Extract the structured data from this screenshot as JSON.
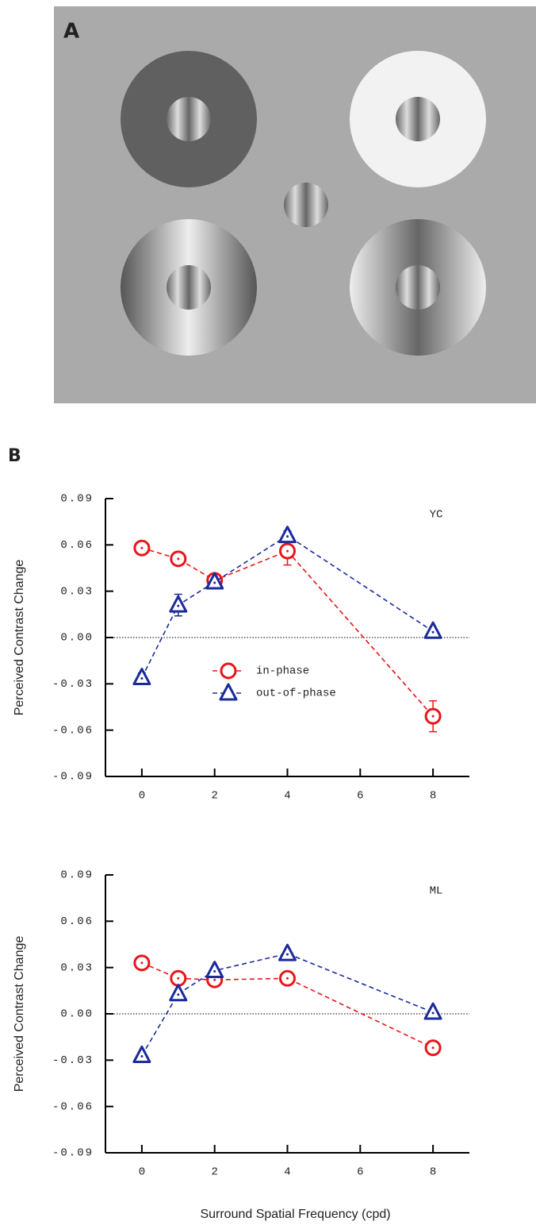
{
  "panels": {
    "a_label": "A",
    "b_label": "B"
  },
  "chart_data": [
    {
      "type": "line",
      "annotation": "YC",
      "y_label": "Perceived Contrast Change",
      "x": [
        0,
        1,
        2,
        4,
        8
      ],
      "xlim": [
        -1,
        9
      ],
      "xticks": [
        0,
        2,
        4,
        6,
        8
      ],
      "ylim": [
        -0.09,
        0.09
      ],
      "yticks": [
        0.09,
        0.06,
        0.03,
        {
          "value": 0,
          "label": "0.00"
        },
        -0.03,
        -0.06,
        -0.09
      ],
      "zero_line": true,
      "legend": "lower center",
      "series": [
        {
          "name": "in-phase",
          "color": "#e8161b",
          "marker": "circle",
          "values": [
            0.058,
            0.051,
            0.037,
            0.056,
            -0.051
          ],
          "errors": [
            0.002,
            0.002,
            0.002,
            0.009,
            0.01
          ]
        },
        {
          "name": "out-of-phase",
          "color": "#1a2b9a",
          "marker": "triangle",
          "values": [
            -0.026,
            0.021,
            0.036,
            0.066,
            0.004
          ],
          "errors": [
            0.003,
            0.007,
            0.002,
            0.003,
            0.002
          ]
        }
      ]
    },
    {
      "type": "line",
      "annotation": "ML",
      "y_label": "Perceived Contrast Change",
      "x_label": "Surround Spatial Frequency (cpd)",
      "x": [
        0,
        1,
        2,
        4,
        8
      ],
      "xlim": [
        -1,
        9
      ],
      "xticks": [
        0,
        2,
        4,
        6,
        8
      ],
      "ylim": [
        -0.09,
        0.09
      ],
      "yticks": [
        0.09,
        0.06,
        0.03,
        {
          "value": 0,
          "label": "0.00"
        },
        -0.03,
        -0.06,
        -0.09
      ],
      "zero_line": true,
      "series": [
        {
          "color": "#e8161b",
          "marker": "circle",
          "values": [
            0.033,
            0.023,
            0.022,
            0.023,
            -0.022
          ]
        },
        {
          "color": "#1a2b9a",
          "marker": "triangle",
          "values": [
            -0.027,
            0.013,
            0.028,
            0.039,
            0.001
          ]
        }
      ]
    }
  ]
}
